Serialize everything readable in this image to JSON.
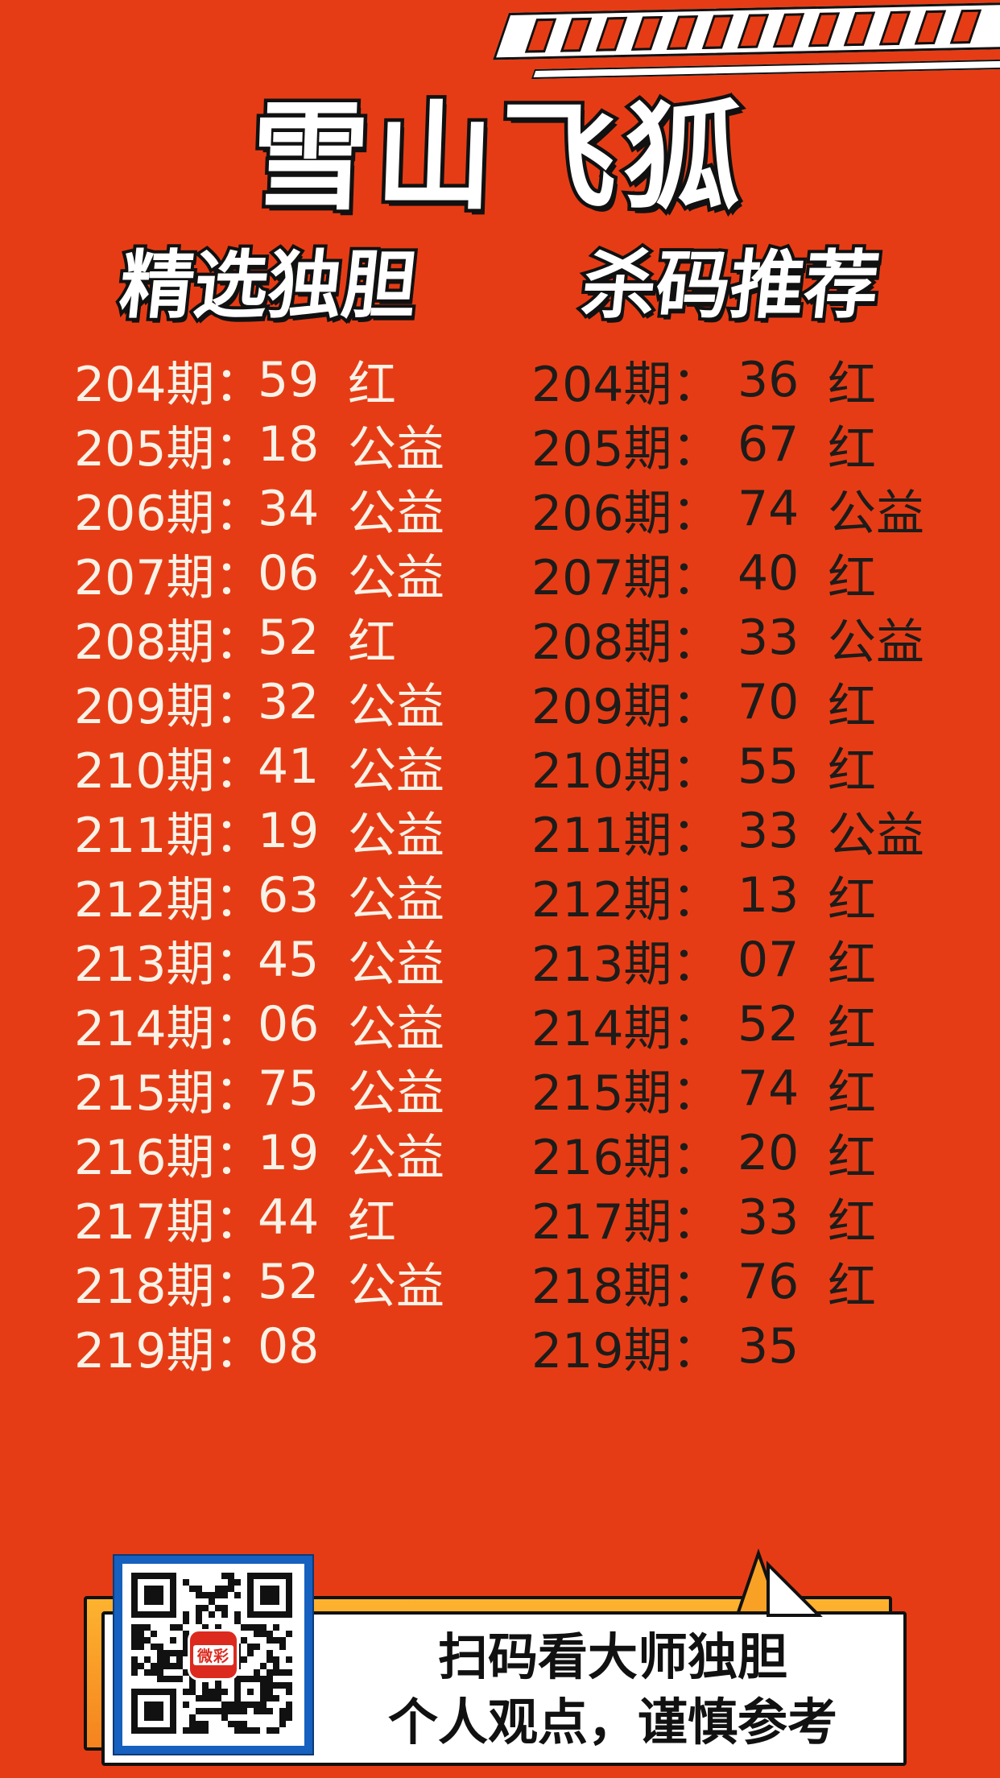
{
  "poster": {
    "title": "雪山飞狐",
    "columns": [
      {
        "header": "精选独胆",
        "rows": [
          {
            "period": "204期：",
            "value": "59",
            "tag": "红"
          },
          {
            "period": "205期：",
            "value": "18",
            "tag": "公益"
          },
          {
            "period": "206期：",
            "value": "34",
            "tag": "公益"
          },
          {
            "period": "207期：",
            "value": "06",
            "tag": "公益"
          },
          {
            "period": "208期：",
            "value": "52",
            "tag": "红"
          },
          {
            "period": "209期：",
            "value": "32",
            "tag": "公益"
          },
          {
            "period": "210期：",
            "value": "41",
            "tag": "公益"
          },
          {
            "period": "211期：",
            "value": "19",
            "tag": "公益"
          },
          {
            "period": "212期：",
            "value": "63",
            "tag": "公益"
          },
          {
            "period": "213期：",
            "value": "45",
            "tag": "公益"
          },
          {
            "period": "214期：",
            "value": "06",
            "tag": "公益"
          },
          {
            "period": "215期：",
            "value": "75",
            "tag": "公益"
          },
          {
            "period": "216期：",
            "value": "19",
            "tag": "公益"
          },
          {
            "period": "217期：",
            "value": "44",
            "tag": "红"
          },
          {
            "period": "218期：",
            "value": "52",
            "tag": "公益"
          },
          {
            "period": "219期：",
            "value": "08",
            "tag": ""
          }
        ]
      },
      {
        "header": "杀码推荐",
        "rows": [
          {
            "period": "204期：",
            "value": "36",
            "tag": "红"
          },
          {
            "period": "205期：",
            "value": "67",
            "tag": "红"
          },
          {
            "period": "206期：",
            "value": "74",
            "tag": "公益"
          },
          {
            "period": "207期：",
            "value": "40",
            "tag": "红"
          },
          {
            "period": "208期：",
            "value": "33",
            "tag": "公益"
          },
          {
            "period": "209期：",
            "value": "70",
            "tag": "红"
          },
          {
            "period": "210期：",
            "value": "55",
            "tag": "红"
          },
          {
            "period": "211期：",
            "value": "33",
            "tag": "公益"
          },
          {
            "period": "212期：",
            "value": "13",
            "tag": "红"
          },
          {
            "period": "213期：",
            "value": "07",
            "tag": "红"
          },
          {
            "period": "214期：",
            "value": "52",
            "tag": "红"
          },
          {
            "period": "215期：",
            "value": "74",
            "tag": "红"
          },
          {
            "period": "216期：",
            "value": "20",
            "tag": "红"
          },
          {
            "period": "217期：",
            "value": "33",
            "tag": "红"
          },
          {
            "period": "218期：",
            "value": "76",
            "tag": "红"
          },
          {
            "period": "219期：",
            "value": "35",
            "tag": ""
          }
        ]
      }
    ],
    "footer": {
      "qr_logo": "微彩",
      "line1": "扫码看大师独胆",
      "line2": "个人观点，谨慎参考"
    },
    "colors": {
      "background": "#e63c15",
      "banner_white": "#ffffff",
      "amber_top": "#fdb32f",
      "amber_bottom": "#f5831f",
      "qr_border_blue": "#1660bf",
      "logo_red": "#dc2a1f",
      "left_text_cream": "#f8f2e7",
      "right_text_black": "#1d1c1a"
    }
  }
}
